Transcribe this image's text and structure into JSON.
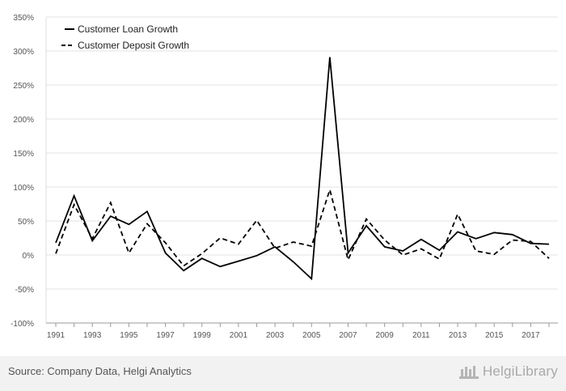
{
  "chart_data": {
    "type": "line",
    "x": [
      1991,
      1992,
      1993,
      1994,
      1995,
      1996,
      1997,
      1998,
      1999,
      2000,
      2001,
      2002,
      2003,
      2004,
      2005,
      2006,
      2007,
      2008,
      2009,
      2010,
      2011,
      2012,
      2013,
      2014,
      2015,
      2016,
      2017,
      2018
    ],
    "x_tick_labels": [
      "1991",
      "1993",
      "1995",
      "1997",
      "1999",
      "2001",
      "2003",
      "2005",
      "2007",
      "2009",
      "2011",
      "2013",
      "2015",
      "2017"
    ],
    "y_tick_labels": [
      "350%",
      "300%",
      "250%",
      "200%",
      "150%",
      "100%",
      "50%",
      "0%",
      "-50%",
      "-100%"
    ],
    "y_ticks": [
      350,
      300,
      250,
      200,
      150,
      100,
      50,
      0,
      -50,
      -100
    ],
    "ylim": [
      -100,
      350
    ],
    "xlim": [
      1991,
      2018
    ],
    "grid": "horizontal",
    "legend_position": "top-left",
    "series": [
      {
        "name": "Customer Loan Growth",
        "style": "solid",
        "color": "#000000",
        "values": [
          18,
          87,
          21,
          57,
          45,
          64,
          3,
          -23,
          -5,
          -17,
          -9,
          -1,
          12,
          -10,
          -35,
          291,
          3,
          43,
          12,
          6,
          23,
          7,
          34,
          24,
          33,
          30,
          17,
          16
        ]
      },
      {
        "name": "Customer Deposit Growth",
        "style": "dashed",
        "color": "#000000",
        "values": [
          2,
          74,
          24,
          77,
          3,
          46,
          18,
          -16,
          2,
          25,
          16,
          51,
          10,
          19,
          13,
          96,
          -7,
          53,
          22,
          0,
          9,
          -6,
          60,
          6,
          1,
          22,
          20,
          -5
        ]
      }
    ]
  },
  "footer": {
    "source": "Source: Company Data, Helgi Analytics",
    "brand": "HelgiLibrary"
  }
}
